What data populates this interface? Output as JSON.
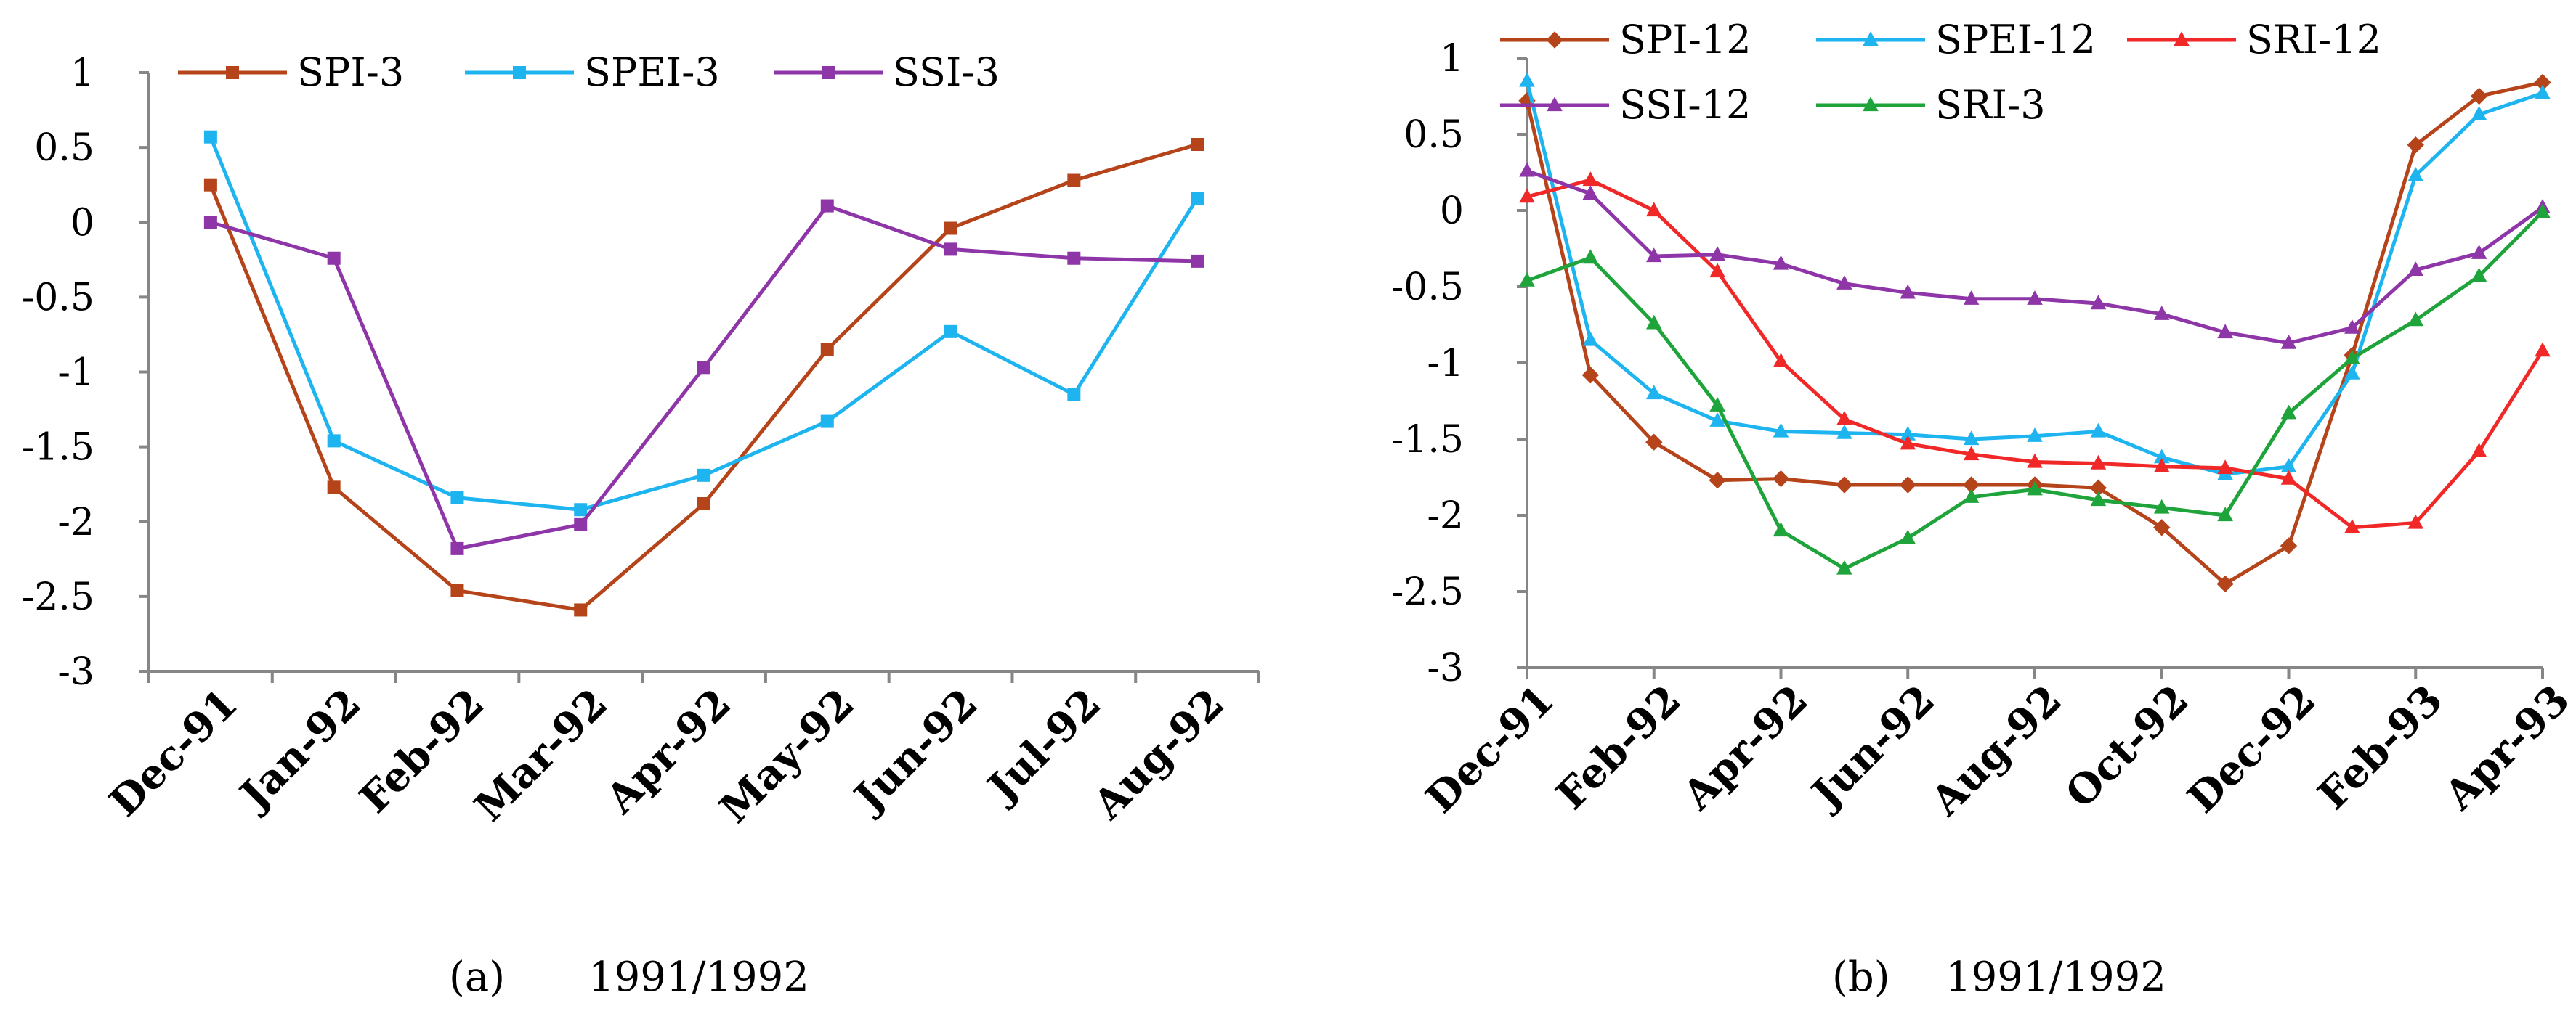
{
  "chart_data": [
    {
      "type": "line",
      "panel_label": "(a)",
      "caption": "1991/1992",
      "categories": [
        "Dec-91",
        "Jan-92",
        "Feb-92",
        "Mar-92",
        "Apr-92",
        "May-92",
        "Jun-92",
        "Jul-92",
        "Aug-92"
      ],
      "ylim": [
        -3,
        1
      ],
      "yticks": [
        "1",
        "0.5",
        "0",
        "-0.5",
        "-1",
        "-1.5",
        "-2",
        "-2.5",
        "-3"
      ],
      "legend_position": "top",
      "series": [
        {
          "name": "SPI-3",
          "color": "#B5441A",
          "marker": "square",
          "values": [
            0.25,
            -1.77,
            -2.46,
            -2.59,
            -1.88,
            -0.85,
            -0.04,
            0.28,
            0.52
          ]
        },
        {
          "name": "SPEI-3",
          "color": "#1EB4F0",
          "marker": "square",
          "values": [
            0.57,
            -1.46,
            -1.84,
            -1.92,
            -1.69,
            -1.33,
            -0.73,
            -1.15,
            0.16
          ]
        },
        {
          "name": "SSI-3",
          "color": "#8E35A8",
          "marker": "square",
          "values": [
            0.0,
            -0.24,
            -2.18,
            -2.02,
            -0.97,
            0.11,
            -0.18,
            -0.24,
            -0.26
          ]
        }
      ]
    },
    {
      "type": "line",
      "panel_label": "(b)",
      "caption": "1991/1992",
      "categories": [
        "Dec-91",
        "Jan-92",
        "Feb-92",
        "Mar-92",
        "Apr-92",
        "May-92",
        "Jun-92",
        "Jul-92",
        "Aug-92",
        "Sep-92",
        "Oct-92",
        "Nov-92",
        "Dec-92",
        "Jan-93",
        "Feb-93",
        "Mar-93",
        "Apr-93"
      ],
      "xticks": [
        "Dec-91",
        "Feb-92",
        "Apr-92",
        "Jun-92",
        "Aug-92",
        "Oct-92",
        "Dec-92",
        "Feb-93",
        "Apr-93"
      ],
      "ylim": [
        -3,
        1
      ],
      "yticks": [
        "1",
        "0.5",
        "0",
        "-0.5",
        "-1",
        "-1.5",
        "-2",
        "-2.5",
        "-3"
      ],
      "legend_position": "top",
      "series": [
        {
          "name": "SPI-12",
          "color": "#B5441A",
          "marker": "diamond",
          "values": [
            0.72,
            -1.08,
            -1.52,
            -1.77,
            -1.76,
            -1.8,
            -1.8,
            -1.8,
            -1.8,
            -1.82,
            -2.08,
            -2.45,
            -2.2,
            -0.95,
            0.43,
            0.75,
            0.84
          ]
        },
        {
          "name": "SPEI-12",
          "color": "#1EB4F0",
          "marker": "triangle",
          "values": [
            0.85,
            -0.85,
            -1.2,
            -1.38,
            -1.45,
            -1.46,
            -1.47,
            -1.5,
            -1.48,
            -1.45,
            -1.62,
            -1.73,
            -1.68,
            -1.07,
            0.23,
            0.63,
            0.77
          ]
        },
        {
          "name": "SRI-12",
          "color": "#F02828",
          "marker": "triangle",
          "values": [
            0.09,
            0.2,
            0.0,
            -0.4,
            -0.99,
            -1.37,
            -1.53,
            -1.6,
            -1.65,
            -1.66,
            -1.68,
            -1.69,
            -1.76,
            -2.08,
            -2.05,
            -1.58,
            -0.92
          ]
        },
        {
          "name": "SSI-12",
          "color": "#8E35A8",
          "marker": "triangle",
          "values": [
            0.26,
            0.11,
            -0.3,
            -0.29,
            -0.35,
            -0.48,
            -0.54,
            -0.58,
            -0.58,
            -0.61,
            -0.68,
            -0.8,
            -0.87,
            -0.77,
            -0.39,
            -0.28,
            0.02
          ]
        },
        {
          "name": "SRI-3",
          "color": "#1FA33B",
          "marker": "triangle",
          "values": [
            -0.46,
            -0.31,
            -0.74,
            -1.28,
            -2.1,
            -2.35,
            -2.15,
            -1.88,
            -1.83,
            -1.9,
            -1.95,
            -2.0,
            -1.33,
            -0.97,
            -0.72,
            -0.43,
            -0.01
          ]
        }
      ]
    }
  ]
}
